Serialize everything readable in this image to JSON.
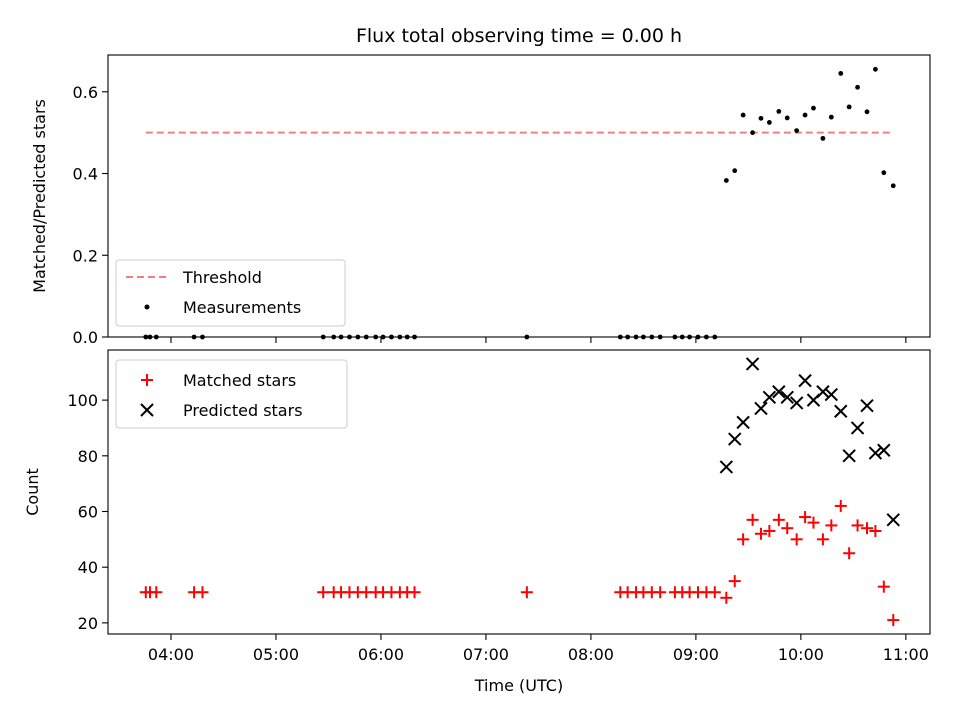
{
  "chart_data": [
    {
      "type": "scatter",
      "title": "Flux total observing time = 0.00 h",
      "xlabel": "",
      "ylabel": "Matched/Predicted stars",
      "ylim": [
        0,
        0.69
      ],
      "yticks": [
        "0.0",
        "0.2",
        "0.4",
        "0.6"
      ],
      "ytick_values": [
        0.0,
        0.2,
        0.4,
        0.6
      ],
      "grid": false,
      "legend_position": "lower-left",
      "threshold": {
        "name": "Threshold",
        "value": 0.5,
        "x_start": 3.76,
        "x_end": 10.88,
        "color": "#f08080"
      },
      "series": [
        {
          "name": "Measurements",
          "color": "#000000",
          "x": [
            3.76,
            3.8,
            3.86,
            4.22,
            4.3,
            5.45,
            5.55,
            5.62,
            5.7,
            5.78,
            5.86,
            5.95,
            6.02,
            6.1,
            6.18,
            6.25,
            6.32,
            7.39,
            8.28,
            8.35,
            8.43,
            8.5,
            8.58,
            8.66,
            8.8,
            8.87,
            8.94,
            9.02,
            9.1,
            9.18,
            9.29,
            9.37,
            9.45,
            9.54,
            9.62,
            9.7,
            9.79,
            9.87,
            9.96,
            10.04,
            10.12,
            10.21,
            10.29,
            10.38,
            10.46,
            10.54,
            10.63,
            10.71,
            10.79,
            10.88
          ],
          "y": [
            0,
            0,
            0,
            0,
            0,
            0,
            0,
            0,
            0,
            0,
            0,
            0,
            0,
            0,
            0,
            0,
            0,
            0,
            0,
            0,
            0,
            0,
            0,
            0,
            0,
            0,
            0,
            0,
            0,
            0,
            0.383,
            0.407,
            0.543,
            0.5,
            0.535,
            0.525,
            0.552,
            0.536,
            0.505,
            0.543,
            0.56,
            0.486,
            0.538,
            0.645,
            0.563,
            0.611,
            0.551,
            0.655,
            0.402,
            0.37
          ]
        }
      ]
    },
    {
      "type": "scatter",
      "title": "",
      "xlabel": "Time (UTC)",
      "ylabel": "Count",
      "ylim": [
        16,
        118
      ],
      "yticks": [
        "20",
        "40",
        "60",
        "80",
        "100"
      ],
      "ytick_values": [
        20,
        40,
        60,
        80,
        100
      ],
      "xlim": [
        3.4,
        11.23
      ],
      "xticks": [
        "04:00",
        "05:00",
        "06:00",
        "07:00",
        "08:00",
        "09:00",
        "10:00",
        "11:00"
      ],
      "xtick_values": [
        4,
        5,
        6,
        7,
        8,
        9,
        10,
        11
      ],
      "grid": false,
      "legend_position": "upper-left",
      "series": [
        {
          "name": "Matched stars",
          "marker": "plus",
          "color": "#ff0000",
          "x": [
            3.76,
            3.8,
            3.86,
            4.22,
            4.3,
            5.45,
            5.55,
            5.62,
            5.7,
            5.78,
            5.86,
            5.95,
            6.02,
            6.1,
            6.18,
            6.25,
            6.32,
            7.39,
            8.28,
            8.35,
            8.43,
            8.5,
            8.58,
            8.66,
            8.8,
            8.87,
            8.94,
            9.02,
            9.1,
            9.18,
            9.29,
            9.37,
            9.45,
            9.54,
            9.62,
            9.7,
            9.79,
            9.87,
            9.96,
            10.04,
            10.12,
            10.21,
            10.29,
            10.38,
            10.46,
            10.54,
            10.63,
            10.71,
            10.79,
            10.88
          ],
          "y": [
            31,
            31,
            31,
            31,
            31,
            31,
            31,
            31,
            31,
            31,
            31,
            31,
            31,
            31,
            31,
            31,
            31,
            31,
            31,
            31,
            31,
            31,
            31,
            31,
            31,
            31,
            31,
            31,
            31,
            31,
            29,
            35,
            50,
            57,
            52,
            53,
            57,
            54,
            50,
            58,
            56,
            50,
            55,
            62,
            45,
            55,
            54,
            53,
            33,
            21
          ]
        },
        {
          "name": "Predicted stars",
          "marker": "x",
          "color": "#000000",
          "x": [
            9.29,
            9.37,
            9.45,
            9.54,
            9.62,
            9.7,
            9.79,
            9.87,
            9.96,
            10.04,
            10.12,
            10.21,
            10.29,
            10.38,
            10.46,
            10.54,
            10.63,
            10.71,
            10.79,
            10.88
          ],
          "y": [
            76,
            86,
            92,
            113,
            97,
            101,
            103,
            101,
            99,
            107,
            100,
            103,
            102,
            96,
            80,
            90,
            98,
            81,
            82,
            57
          ]
        }
      ]
    }
  ]
}
